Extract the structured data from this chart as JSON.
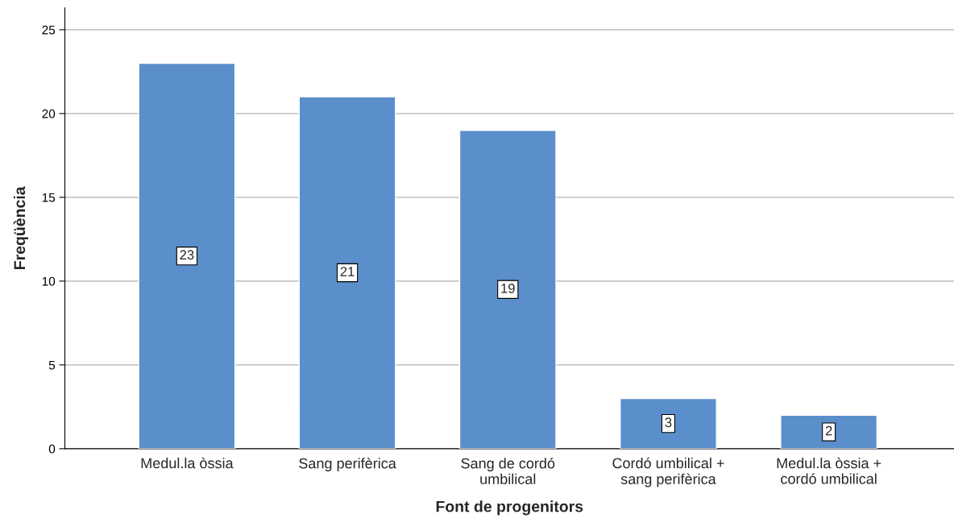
{
  "chart_data": {
    "type": "bar",
    "xlabel": "Font de progenitors",
    "ylabel": "Freqüència",
    "categories": [
      "Medul.la òssia",
      "Sang perifèrica",
      "Sang de cordó\numbilical",
      "Cordó umbilical +\nsang perifèrica",
      "Medul.la òssia +\ncordó umbilical"
    ],
    "values": [
      23,
      21,
      19,
      3,
      2
    ],
    "color": "#5b8fcb",
    "ylim": [
      0,
      26.3
    ],
    "yticks": [
      0,
      5,
      10,
      15,
      20,
      25
    ],
    "grid": "y",
    "data_labels": true
  }
}
